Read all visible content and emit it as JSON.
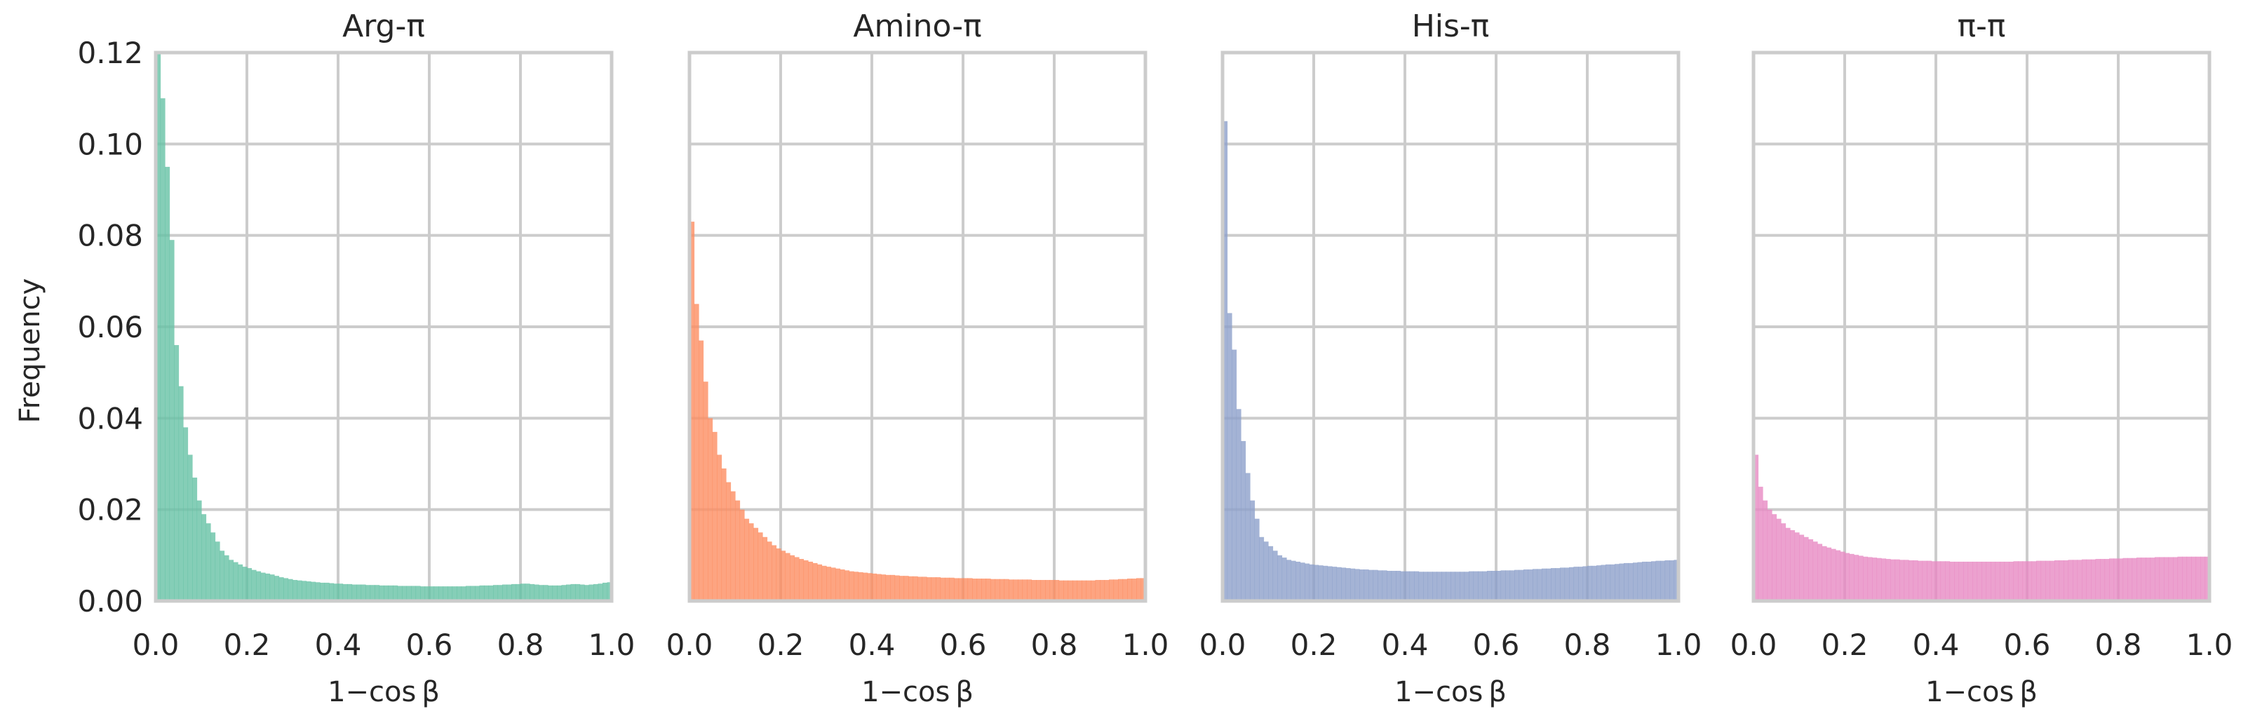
{
  "figure": {
    "ylabel": "Frequency",
    "xlabel": "1−cos β"
  },
  "chart_data": [
    {
      "type": "bar",
      "title": "Arg-π",
      "xlabel": "1−cos β",
      "ylabel": "Frequency",
      "xlim": [
        0,
        1
      ],
      "ylim": [
        0,
        0.12
      ],
      "xticks": [
        "0.0",
        "0.2",
        "0.4",
        "0.6",
        "0.8",
        "1.0"
      ],
      "yticks": [
        "0.00",
        "0.02",
        "0.04",
        "0.06",
        "0.08",
        "0.10",
        "0.12"
      ],
      "grid": true,
      "color": "#66c2a5",
      "bin_width": 0.01,
      "values": [
        0.12,
        0.11,
        0.095,
        0.079,
        0.056,
        0.047,
        0.038,
        0.032,
        0.027,
        0.022,
        0.019,
        0.017,
        0.015,
        0.013,
        0.011,
        0.01,
        0.009,
        0.0085,
        0.008,
        0.0075,
        0.0072,
        0.0068,
        0.0065,
        0.0062,
        0.006,
        0.0058,
        0.0055,
        0.0052,
        0.005,
        0.0048,
        0.0046,
        0.0045,
        0.0044,
        0.0043,
        0.0042,
        0.0041,
        0.004,
        0.004,
        0.0039,
        0.0038,
        0.0038,
        0.0037,
        0.0037,
        0.0036,
        0.0036,
        0.0036,
        0.0035,
        0.0035,
        0.0035,
        0.0034,
        0.0034,
        0.0034,
        0.0034,
        0.0033,
        0.0033,
        0.0033,
        0.0033,
        0.0033,
        0.0032,
        0.0032,
        0.0032,
        0.0032,
        0.0032,
        0.0032,
        0.0032,
        0.0032,
        0.0032,
        0.0032,
        0.0033,
        0.0033,
        0.0033,
        0.0034,
        0.0034,
        0.0034,
        0.0035,
        0.0035,
        0.0036,
        0.0036,
        0.0037,
        0.0037,
        0.0038,
        0.0038,
        0.0037,
        0.0036,
        0.0035,
        0.0035,
        0.0034,
        0.0034,
        0.0034,
        0.0035,
        0.0036,
        0.0037,
        0.0037,
        0.0036,
        0.0035,
        0.0036,
        0.0037,
        0.0038,
        0.004,
        0.0041
      ]
    },
    {
      "type": "bar",
      "title": "Amino-π",
      "xlabel": "1−cos β",
      "xlim": [
        0,
        1
      ],
      "ylim": [
        0,
        0.12
      ],
      "xticks": [
        "0.0",
        "0.2",
        "0.4",
        "0.6",
        "0.8",
        "1.0"
      ],
      "grid": true,
      "color": "#fc8d62",
      "bin_width": 0.01,
      "values": [
        0.083,
        0.065,
        0.057,
        0.048,
        0.04,
        0.037,
        0.032,
        0.029,
        0.026,
        0.024,
        0.022,
        0.02,
        0.018,
        0.017,
        0.016,
        0.015,
        0.014,
        0.013,
        0.0122,
        0.0115,
        0.011,
        0.0105,
        0.01,
        0.0096,
        0.0092,
        0.0089,
        0.0086,
        0.0083,
        0.008,
        0.0077,
        0.0075,
        0.0073,
        0.0071,
        0.0069,
        0.0067,
        0.0065,
        0.0064,
        0.0063,
        0.0062,
        0.0061,
        0.006,
        0.0059,
        0.0058,
        0.0057,
        0.0057,
        0.0056,
        0.0055,
        0.0055,
        0.0054,
        0.0054,
        0.0053,
        0.0053,
        0.0052,
        0.0052,
        0.0052,
        0.0051,
        0.0051,
        0.0051,
        0.005,
        0.005,
        0.005,
        0.005,
        0.0049,
        0.0049,
        0.0049,
        0.0049,
        0.0048,
        0.0048,
        0.0048,
        0.0048,
        0.0047,
        0.0047,
        0.0047,
        0.0047,
        0.0047,
        0.0046,
        0.0046,
        0.0046,
        0.0046,
        0.0046,
        0.0046,
        0.0045,
        0.0045,
        0.0045,
        0.0045,
        0.0045,
        0.0045,
        0.0045,
        0.0045,
        0.0046,
        0.0046,
        0.0046,
        0.0047,
        0.0047,
        0.0048,
        0.0048,
        0.0049,
        0.0049,
        0.005,
        0.005
      ]
    },
    {
      "type": "bar",
      "title": "His-π",
      "xlabel": "1−cos β",
      "xlim": [
        0,
        1
      ],
      "ylim": [
        0,
        0.12
      ],
      "xticks": [
        "0.0",
        "0.2",
        "0.4",
        "0.6",
        "0.8",
        "1.0"
      ],
      "grid": true,
      "color": "#8da0cb",
      "bin_width": 0.01,
      "values": [
        0.105,
        0.063,
        0.055,
        0.042,
        0.035,
        0.028,
        0.022,
        0.018,
        0.014,
        0.013,
        0.012,
        0.011,
        0.01,
        0.0095,
        0.009,
        0.0088,
        0.0086,
        0.0084,
        0.0082,
        0.008,
        0.0079,
        0.0078,
        0.0077,
        0.0076,
        0.0075,
        0.0074,
        0.0073,
        0.0072,
        0.0071,
        0.007,
        0.0069,
        0.0069,
        0.0068,
        0.0068,
        0.0067,
        0.0067,
        0.0066,
        0.0066,
        0.0066,
        0.0065,
        0.0065,
        0.0065,
        0.0065,
        0.0064,
        0.0064,
        0.0064,
        0.0064,
        0.0064,
        0.0064,
        0.0064,
        0.0064,
        0.0064,
        0.0064,
        0.0064,
        0.0065,
        0.0065,
        0.0065,
        0.0065,
        0.0066,
        0.0066,
        0.0066,
        0.0067,
        0.0067,
        0.0067,
        0.0068,
        0.0068,
        0.0069,
        0.0069,
        0.007,
        0.007,
        0.0071,
        0.0071,
        0.0072,
        0.0072,
        0.0073,
        0.0073,
        0.0074,
        0.0075,
        0.0075,
        0.0076,
        0.0077,
        0.0077,
        0.0078,
        0.0079,
        0.008,
        0.008,
        0.0081,
        0.0082,
        0.0083,
        0.0083,
        0.0084,
        0.0085,
        0.0086,
        0.0086,
        0.0087,
        0.0088,
        0.0088,
        0.0089,
        0.0089,
        0.009
      ]
    },
    {
      "type": "bar",
      "title": "π-π",
      "xlabel": "1−cos β",
      "xlim": [
        0,
        1
      ],
      "ylim": [
        0,
        0.12
      ],
      "xticks": [
        "0.0",
        "0.2",
        "0.4",
        "0.6",
        "0.8",
        "1.0"
      ],
      "grid": true,
      "color": "#e78ac3",
      "bin_width": 0.01,
      "values": [
        0.032,
        0.025,
        0.022,
        0.02,
        0.019,
        0.018,
        0.017,
        0.016,
        0.0155,
        0.015,
        0.0145,
        0.014,
        0.0135,
        0.013,
        0.0125,
        0.012,
        0.0117,
        0.0114,
        0.0111,
        0.0108,
        0.0105,
        0.0103,
        0.0101,
        0.0099,
        0.0097,
        0.0096,
        0.0095,
        0.0094,
        0.0093,
        0.0092,
        0.0091,
        0.0091,
        0.009,
        0.009,
        0.0089,
        0.0089,
        0.0088,
        0.0088,
        0.0088,
        0.0087,
        0.0087,
        0.0087,
        0.0087,
        0.0086,
        0.0086,
        0.0086,
        0.0086,
        0.0086,
        0.0086,
        0.0086,
        0.0086,
        0.0086,
        0.0086,
        0.0086,
        0.0086,
        0.0086,
        0.0086,
        0.0087,
        0.0087,
        0.0087,
        0.0087,
        0.0087,
        0.0088,
        0.0088,
        0.0088,
        0.0088,
        0.0089,
        0.0089,
        0.0089,
        0.009,
        0.009,
        0.009,
        0.0091,
        0.0091,
        0.0091,
        0.0092,
        0.0092,
        0.0092,
        0.0093,
        0.0093,
        0.0093,
        0.0094,
        0.0094,
        0.0094,
        0.0095,
        0.0095,
        0.0095,
        0.0095,
        0.0096,
        0.0096,
        0.0096,
        0.0096,
        0.0096,
        0.0097,
        0.0097,
        0.0097,
        0.0097,
        0.0097,
        0.0097,
        0.0097
      ]
    }
  ]
}
